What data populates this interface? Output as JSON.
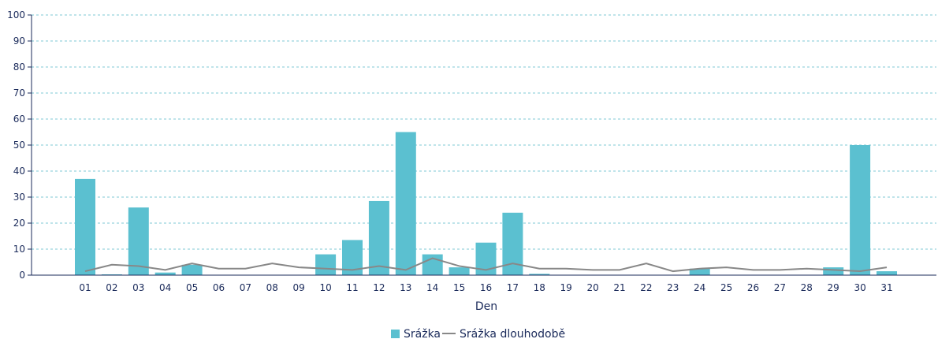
{
  "chart_data": {
    "type": "bar",
    "categories": [
      "01",
      "02",
      "03",
      "04",
      "05",
      "06",
      "07",
      "08",
      "09",
      "10",
      "11",
      "12",
      "13",
      "14",
      "15",
      "16",
      "17",
      "18",
      "19",
      "20",
      "21",
      "22",
      "23",
      "24",
      "25",
      "26",
      "27",
      "28",
      "29",
      "30",
      "31"
    ],
    "series": [
      {
        "name": "Srážka",
        "type": "bar",
        "color": "#5bc0d0",
        "values": [
          37,
          0.3,
          26,
          1,
          4,
          0,
          0,
          0,
          0,
          8,
          13.5,
          28.5,
          55,
          8,
          3,
          12.5,
          24,
          0.5,
          0,
          0,
          0,
          0,
          0,
          2.5,
          0,
          0,
          0,
          0,
          3,
          50,
          1.5
        ]
      },
      {
        "name": "Srážka dlouhodobě",
        "type": "line",
        "color": "#888888",
        "values": [
          1.5,
          4,
          3.5,
          2,
          4.5,
          2.5,
          2.5,
          4.5,
          3,
          2.5,
          2,
          3.5,
          2,
          6.5,
          3.5,
          2,
          4.5,
          2.5,
          2.5,
          2,
          2,
          4.5,
          1.5,
          2.5,
          3,
          2,
          2,
          2.5,
          2,
          1.5,
          3
        ]
      }
    ],
    "xlabel": "Den",
    "ylabel": "",
    "ylim": [
      0,
      100
    ],
    "yticks": [
      0,
      10,
      20,
      30,
      40,
      50,
      60,
      70,
      80,
      90,
      100
    ],
    "grid": true,
    "legend_position": "bottom-center"
  },
  "colors": {
    "axis": "#1a2a5a",
    "grid": "#7fcad6"
  }
}
